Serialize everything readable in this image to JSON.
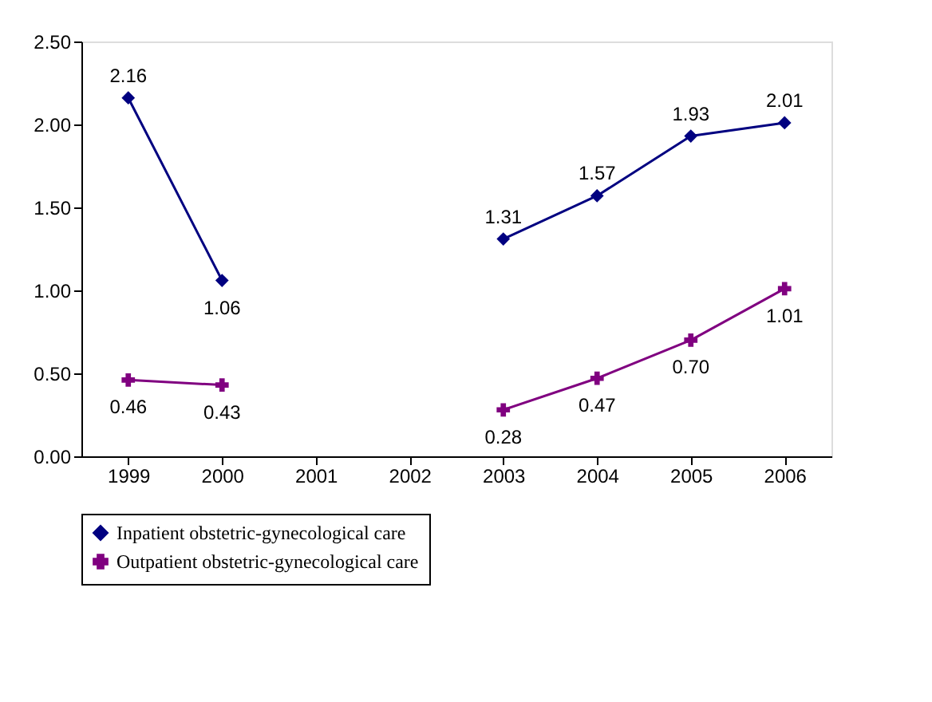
{
  "chart_data": {
    "type": "line",
    "categories": [
      "1999",
      "2000",
      "2001",
      "2002",
      "2003",
      "2004",
      "2005",
      "2006"
    ],
    "series": [
      {
        "name": "Inpatient obstetric-gynecological care",
        "color": "#000080",
        "marker": "diamond",
        "values": [
          2.16,
          1.06,
          null,
          null,
          1.31,
          1.57,
          1.93,
          2.01
        ],
        "value_labels": [
          "2.16",
          "1.06",
          null,
          null,
          "1.31",
          "1.57",
          "1.93",
          "2.01"
        ]
      },
      {
        "name": "Outpatient obstetric-gynecological care",
        "color": "#800080",
        "marker": "cross",
        "values": [
          0.46,
          0.43,
          null,
          null,
          0.28,
          0.47,
          0.7,
          1.01
        ],
        "value_labels": [
          "0.46",
          "0.43",
          null,
          null,
          "0.28",
          "0.47",
          "0.70",
          "1.01"
        ]
      }
    ],
    "ylim": [
      0,
      2.5
    ],
    "yticks": [
      {
        "value": 0,
        "label": "0.00"
      },
      {
        "value": 0.5,
        "label": "0.50"
      },
      {
        "value": 1,
        "label": "1.00"
      },
      {
        "value": 1.5,
        "label": "1.50"
      },
      {
        "value": 2,
        "label": "2.00"
      },
      {
        "value": 2.5,
        "label": "2.50"
      }
    ],
    "grid": false,
    "legend": "bottom",
    "line_style": "solid"
  }
}
